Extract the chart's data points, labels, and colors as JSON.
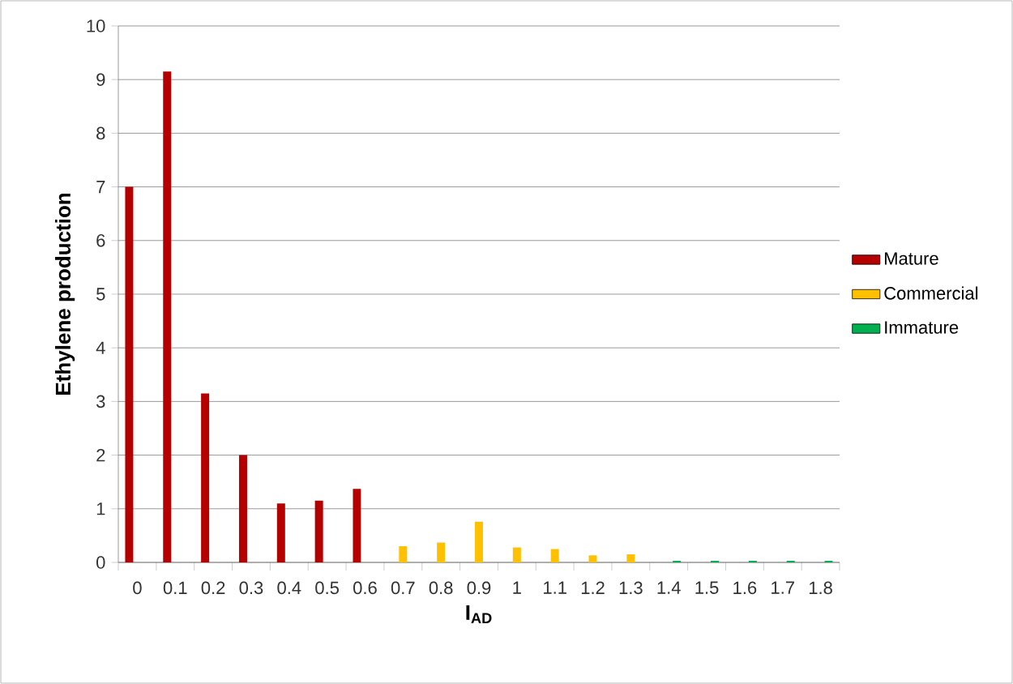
{
  "chart_data": {
    "type": "bar",
    "xlabel": "**I$_{AD}$**",
    "ylabel": "Ethylene production",
    "categories": [
      "0",
      "0.1",
      "0.2",
      "0.3",
      "0.4",
      "0.5",
      "0.6",
      "0.7",
      "0.8",
      "0.9",
      "1",
      "1.1",
      "1.2",
      "1.3",
      "1.4",
      "1.5",
      "1.6",
      "1.7",
      "1.8"
    ],
    "series": [
      {
        "name": "Mature",
        "color": "#b50000",
        "values": [
          7.0,
          9.15,
          3.15,
          2.0,
          1.1,
          1.15,
          1.37,
          null,
          null,
          null,
          null,
          null,
          null,
          null,
          null,
          null,
          null,
          null,
          null
        ]
      },
      {
        "name": "Commercial",
        "color": "#ffc000",
        "values": [
          null,
          null,
          null,
          null,
          null,
          null,
          null,
          0.3,
          0.37,
          0.76,
          0.28,
          0.25,
          0.13,
          0.15,
          null,
          null,
          null,
          null,
          null
        ]
      },
      {
        "name": "Immature",
        "color": "#00b050",
        "values": [
          null,
          null,
          null,
          null,
          null,
          null,
          null,
          null,
          null,
          null,
          null,
          null,
          null,
          null,
          0.03,
          0.03,
          0.03,
          0.03,
          0.03
        ]
      }
    ],
    "ylim": [
      0,
      10
    ],
    "yticks": [
      0,
      1,
      2,
      3,
      4,
      5,
      6,
      7,
      8,
      9,
      10
    ],
    "grid": "y",
    "legend": "right"
  }
}
